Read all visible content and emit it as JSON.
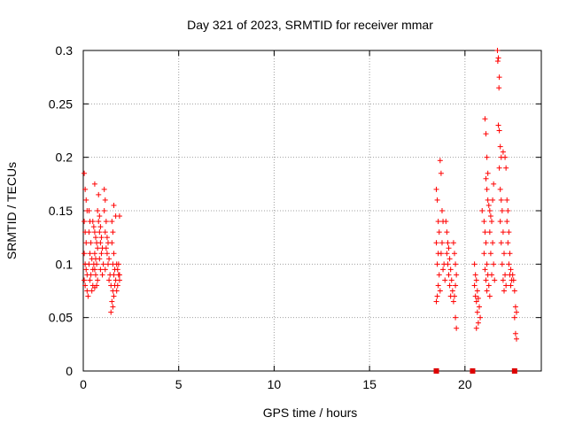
{
  "chart_data": {
    "type": "scatter",
    "title": "Day 321 of 2023, SRMTID for receiver mmar",
    "xlabel": "GPS time / hours",
    "ylabel": "SRMTID / TECUs",
    "xlim": [
      0,
      24
    ],
    "ylim": [
      0,
      0.3
    ],
    "xticks": [
      0,
      5,
      10,
      15,
      20
    ],
    "xtick_labels": [
      "0",
      "5",
      "10",
      "15",
      "20"
    ],
    "yticks": [
      0,
      0.05,
      0.1,
      0.15,
      0.2,
      0.25,
      0.3
    ],
    "ytick_labels": [
      "0",
      "0.05",
      "0.1",
      "0.15",
      "0.2",
      "0.25",
      "0.3"
    ],
    "grid": true,
    "marker_color": "#ff0000",
    "gap_marker_color": "#dd0000",
    "gap_markers_x": [
      18.5,
      20.4,
      22.6
    ],
    "series": [
      {
        "marker": "plus",
        "points": [
          [
            0.05,
            0.185
          ],
          [
            0.1,
            0.17
          ],
          [
            0.15,
            0.16
          ],
          [
            0.2,
            0.15
          ],
          [
            0.05,
            0.14
          ],
          [
            0.1,
            0.13
          ],
          [
            0.15,
            0.12
          ],
          [
            0.05,
            0.11
          ],
          [
            0.1,
            0.1
          ],
          [
            0.15,
            0.095
          ],
          [
            0.2,
            0.09
          ],
          [
            0.05,
            0.085
          ],
          [
            0.1,
            0.08
          ],
          [
            0.2,
            0.075
          ],
          [
            0.25,
            0.07
          ],
          [
            0.3,
            0.15
          ],
          [
            0.35,
            0.14
          ],
          [
            0.3,
            0.13
          ],
          [
            0.4,
            0.12
          ],
          [
            0.35,
            0.11
          ],
          [
            0.3,
            0.1
          ],
          [
            0.45,
            0.105
          ],
          [
            0.5,
            0.095
          ],
          [
            0.4,
            0.09
          ],
          [
            0.35,
            0.085
          ],
          [
            0.5,
            0.08
          ],
          [
            0.45,
            0.075
          ],
          [
            0.5,
            0.14
          ],
          [
            0.55,
            0.135
          ],
          [
            0.6,
            0.13
          ],
          [
            0.65,
            0.125
          ],
          [
            0.7,
            0.12
          ],
          [
            0.75,
            0.115
          ],
          [
            0.6,
            0.11
          ],
          [
            0.65,
            0.105
          ],
          [
            0.7,
            0.1
          ],
          [
            0.55,
            0.1
          ],
          [
            0.6,
            0.095
          ],
          [
            0.65,
            0.09
          ],
          [
            0.75,
            0.085
          ],
          [
            0.7,
            0.08
          ],
          [
            0.6,
            0.078
          ],
          [
            0.6,
            0.175
          ],
          [
            0.8,
            0.165
          ],
          [
            0.75,
            0.15
          ],
          [
            0.85,
            0.145
          ],
          [
            0.8,
            0.14
          ],
          [
            0.9,
            0.135
          ],
          [
            0.85,
            0.13
          ],
          [
            0.95,
            0.125
          ],
          [
            0.9,
            0.12
          ],
          [
            1.0,
            0.115
          ],
          [
            0.95,
            0.11
          ],
          [
            0.85,
            0.105
          ],
          [
            1.05,
            0.1
          ],
          [
            0.9,
            0.095
          ],
          [
            1.0,
            0.09
          ],
          [
            1.1,
            0.17
          ],
          [
            1.15,
            0.16
          ],
          [
            1.1,
            0.15
          ],
          [
            1.2,
            0.14
          ],
          [
            1.15,
            0.13
          ],
          [
            1.25,
            0.125
          ],
          [
            1.3,
            0.12
          ],
          [
            1.2,
            0.115
          ],
          [
            1.25,
            0.11
          ],
          [
            1.35,
            0.105
          ],
          [
            1.3,
            0.1
          ],
          [
            1.15,
            0.095
          ],
          [
            1.4,
            0.09
          ],
          [
            1.35,
            0.085
          ],
          [
            1.45,
            0.08
          ],
          [
            1.5,
            0.14
          ],
          [
            1.55,
            0.13
          ],
          [
            1.5,
            0.12
          ],
          [
            1.6,
            0.11
          ],
          [
            1.55,
            0.1
          ],
          [
            1.65,
            0.095
          ],
          [
            1.6,
            0.09
          ],
          [
            1.7,
            0.085
          ],
          [
            1.65,
            0.08
          ],
          [
            1.55,
            0.075
          ],
          [
            1.6,
            0.07
          ],
          [
            1.5,
            0.065
          ],
          [
            1.55,
            0.06
          ],
          [
            1.45,
            0.055
          ],
          [
            1.6,
            0.155
          ],
          [
            1.7,
            0.145
          ],
          [
            1.75,
            0.1
          ],
          [
            1.8,
            0.095
          ],
          [
            1.85,
            0.09
          ],
          [
            1.9,
            0.085
          ],
          [
            1.8,
            0.08
          ],
          [
            1.75,
            0.075
          ],
          [
            1.9,
            0.145
          ],
          [
            1.85,
            0.1
          ],
          [
            1.9,
            0.09
          ],
          [
            18.5,
            0.17
          ],
          [
            18.55,
            0.16
          ],
          [
            18.6,
            0.14
          ],
          [
            18.65,
            0.13
          ],
          [
            18.5,
            0.12
          ],
          [
            18.6,
            0.11
          ],
          [
            18.55,
            0.1
          ],
          [
            18.65,
            0.09
          ],
          [
            18.6,
            0.08
          ],
          [
            18.7,
            0.075
          ],
          [
            18.55,
            0.07
          ],
          [
            18.5,
            0.065
          ],
          [
            18.7,
            0.197
          ],
          [
            18.75,
            0.185
          ],
          [
            18.8,
            0.15
          ],
          [
            18.85,
            0.14
          ],
          [
            18.8,
            0.12
          ],
          [
            18.75,
            0.11
          ],
          [
            18.9,
            0.1
          ],
          [
            18.85,
            0.095
          ],
          [
            18.95,
            0.085
          ],
          [
            19.0,
            0.14
          ],
          [
            19.05,
            0.13
          ],
          [
            19.1,
            0.12
          ],
          [
            19.15,
            0.115
          ],
          [
            19.05,
            0.11
          ],
          [
            19.2,
            0.105
          ],
          [
            19.1,
            0.1
          ],
          [
            19.25,
            0.095
          ],
          [
            19.15,
            0.09
          ],
          [
            19.3,
            0.085
          ],
          [
            19.2,
            0.08
          ],
          [
            19.35,
            0.075
          ],
          [
            19.25,
            0.07
          ],
          [
            19.4,
            0.065
          ],
          [
            19.4,
            0.12
          ],
          [
            19.45,
            0.11
          ],
          [
            19.5,
            0.1
          ],
          [
            19.55,
            0.09
          ],
          [
            19.5,
            0.08
          ],
          [
            19.45,
            0.07
          ],
          [
            19.5,
            0.05
          ],
          [
            19.55,
            0.04
          ],
          [
            20.5,
            0.1
          ],
          [
            20.55,
            0.09
          ],
          [
            20.6,
            0.085
          ],
          [
            20.5,
            0.08
          ],
          [
            20.65,
            0.075
          ],
          [
            20.55,
            0.07
          ],
          [
            20.7,
            0.068
          ],
          [
            20.6,
            0.065
          ],
          [
            20.75,
            0.06
          ],
          [
            20.65,
            0.055
          ],
          [
            20.8,
            0.05
          ],
          [
            20.7,
            0.045
          ],
          [
            20.6,
            0.04
          ],
          [
            20.9,
            0.15
          ],
          [
            21.0,
            0.14
          ],
          [
            21.05,
            0.13
          ],
          [
            21.1,
            0.12
          ],
          [
            21.0,
            0.11
          ],
          [
            21.15,
            0.1
          ],
          [
            21.05,
            0.095
          ],
          [
            21.2,
            0.09
          ],
          [
            21.1,
            0.085
          ],
          [
            21.25,
            0.08
          ],
          [
            21.15,
            0.075
          ],
          [
            21.3,
            0.07
          ],
          [
            21.1,
            0.18
          ],
          [
            21.15,
            0.17
          ],
          [
            21.2,
            0.16
          ],
          [
            21.25,
            0.155
          ],
          [
            21.3,
            0.15
          ],
          [
            21.35,
            0.145
          ],
          [
            21.4,
            0.14
          ],
          [
            21.3,
            0.13
          ],
          [
            21.45,
            0.12
          ],
          [
            21.35,
            0.11
          ],
          [
            21.5,
            0.1
          ],
          [
            21.4,
            0.09
          ],
          [
            21.55,
            0.085
          ],
          [
            21.05,
            0.236
          ],
          [
            21.1,
            0.222
          ],
          [
            21.15,
            0.2
          ],
          [
            21.2,
            0.185
          ],
          [
            21.5,
            0.175
          ],
          [
            21.45,
            0.16
          ],
          [
            21.7,
            0.3
          ],
          [
            21.75,
            0.293
          ],
          [
            21.72,
            0.29
          ],
          [
            21.8,
            0.275
          ],
          [
            21.78,
            0.265
          ],
          [
            21.75,
            0.23
          ],
          [
            21.8,
            0.225
          ],
          [
            21.85,
            0.21
          ],
          [
            21.9,
            0.2
          ],
          [
            21.8,
            0.19
          ],
          [
            21.85,
            0.17
          ],
          [
            21.9,
            0.16
          ],
          [
            21.95,
            0.15
          ],
          [
            21.85,
            0.14
          ],
          [
            22.0,
            0.13
          ],
          [
            21.9,
            0.12
          ],
          [
            22.05,
            0.11
          ],
          [
            21.95,
            0.1
          ],
          [
            22.1,
            0.09
          ],
          [
            22.0,
            0.085
          ],
          [
            22.15,
            0.08
          ],
          [
            22.05,
            0.075
          ],
          [
            22.0,
            0.205
          ],
          [
            22.1,
            0.2
          ],
          [
            22.15,
            0.19
          ],
          [
            22.2,
            0.16
          ],
          [
            22.25,
            0.15
          ],
          [
            22.2,
            0.14
          ],
          [
            22.3,
            0.13
          ],
          [
            22.25,
            0.12
          ],
          [
            22.35,
            0.11
          ],
          [
            22.3,
            0.1
          ],
          [
            22.4,
            0.095
          ],
          [
            22.35,
            0.09
          ],
          [
            22.45,
            0.085
          ],
          [
            22.4,
            0.08
          ],
          [
            22.5,
            0.09
          ],
          [
            22.55,
            0.085
          ],
          [
            22.6,
            0.075
          ],
          [
            22.65,
            0.06
          ],
          [
            22.7,
            0.055
          ],
          [
            22.6,
            0.05
          ],
          [
            22.65,
            0.035
          ],
          [
            22.7,
            0.03
          ]
        ]
      }
    ]
  }
}
